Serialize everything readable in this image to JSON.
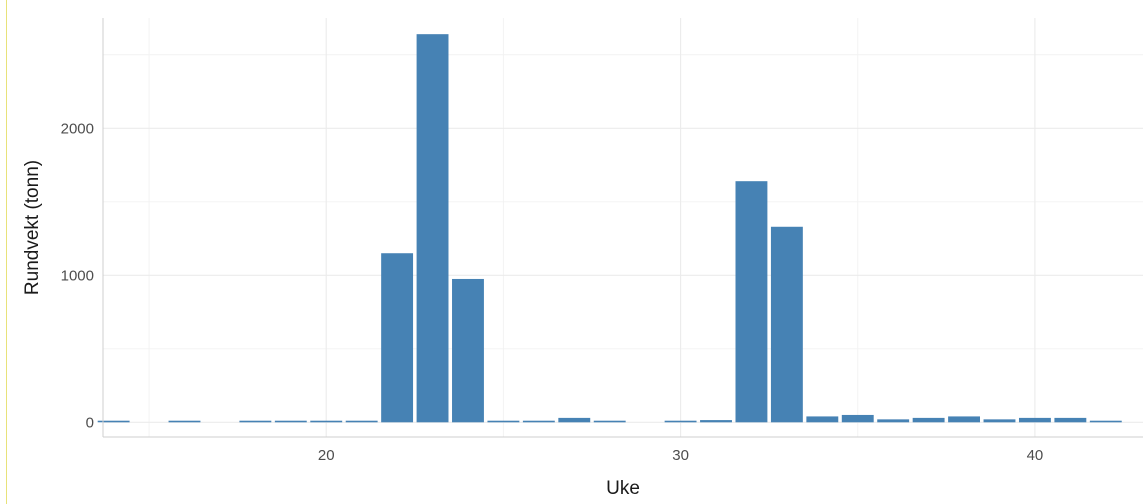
{
  "chart_data": {
    "type": "bar",
    "xlabel": "Uke",
    "ylabel": "Rundvekt (tonn)",
    "xlim": [
      13.7,
      43.05
    ],
    "ylim": [
      -100,
      2750
    ],
    "x_ticks": [
      20,
      30,
      40
    ],
    "y_ticks": [
      0,
      1000,
      2000
    ],
    "grid": true,
    "bar_color": "#4682B4",
    "x": [
      14,
      16,
      18,
      19,
      20,
      21,
      22,
      23,
      24,
      25,
      26,
      27,
      28,
      30,
      31,
      32,
      33,
      34,
      35,
      36,
      37,
      38,
      39,
      40,
      41,
      42
    ],
    "values": [
      2,
      3,
      3,
      3,
      3,
      3,
      1150,
      2640,
      975,
      3,
      5,
      30,
      3,
      3,
      15,
      1640,
      1330,
      40,
      50,
      20,
      30,
      40,
      20,
      30,
      30,
      5
    ]
  }
}
